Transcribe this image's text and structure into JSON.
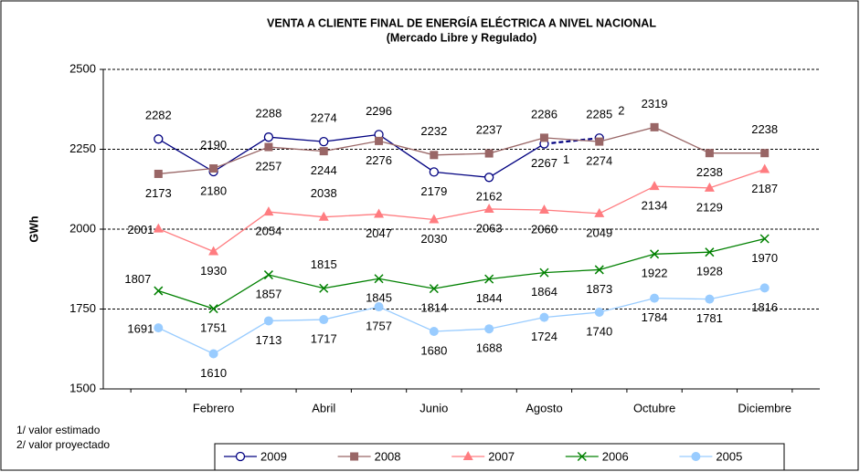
{
  "chart_data": {
    "type": "line",
    "title": "VENTA A CLIENTE FINAL DE ENERGÍA ELÉCTRICA A NIVEL NACIONAL",
    "subtitle": "(Mercado Libre y Regulado)",
    "y_label": "GWh",
    "categories": [
      null,
      "Febrero",
      null,
      "Abril",
      null,
      "Junio",
      null,
      "Agosto",
      null,
      "Octubre",
      null,
      "Diciembre"
    ],
    "series": [
      {
        "name": "2009",
        "color": "#000080",
        "marker": "open-circle",
        "dashed_from": 7,
        "values": [
          2282,
          2180,
          2288,
          2274,
          2296,
          2179,
          2162,
          2267,
          2285,
          null,
          null,
          null
        ]
      },
      {
        "name": "2008",
        "color": "#996666",
        "marker": "square",
        "values": [
          2173,
          2190,
          2257,
          2244,
          2276,
          2232,
          2237,
          2286,
          2274,
          2319,
          2238,
          2238
        ]
      },
      {
        "name": "2007",
        "color": "#ff7c80",
        "marker": "triangle",
        "values": [
          2001,
          1930,
          2054,
          2038,
          2047,
          2030,
          2063,
          2060,
          2049,
          2134,
          2129,
          2187
        ]
      },
      {
        "name": "2006",
        "color": "#008000",
        "marker": "x",
        "values": [
          1807,
          1751,
          1857,
          1815,
          1845,
          1814,
          1844,
          1864,
          1873,
          1922,
          1928,
          1970
        ]
      },
      {
        "name": "2005",
        "color": "#99ccff",
        "marker": "circle",
        "values": [
          1691,
          1610,
          1713,
          1717,
          1757,
          1680,
          1688,
          1724,
          1740,
          1784,
          1781,
          1816
        ]
      }
    ],
    "annotations": [
      {
        "text": "1",
        "series": 0,
        "index": 7
      },
      {
        "text": "2",
        "series": 0,
        "index": 8
      }
    ],
    "notes": [
      "1/ valor estimado",
      "2/ valor proyectado"
    ],
    "ylim": [
      1500,
      2500
    ],
    "yticks": [
      1500,
      1750,
      2000,
      2250,
      2500
    ],
    "grid": true,
    "legend": "bottom"
  }
}
